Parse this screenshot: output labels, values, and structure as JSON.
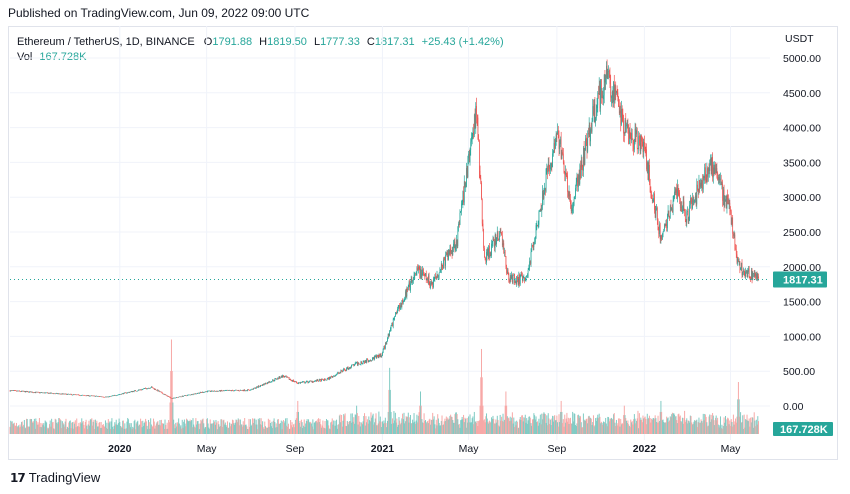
{
  "published": "Published on TradingView.com, Jun 09, 2022 09:00 UTC",
  "legend": {
    "symbol": "Ethereum / TetherUS, 1D, BINANCE",
    "open_label": "O",
    "open": "1791.88",
    "high_label": "H",
    "high": "1819.50",
    "low_label": "L",
    "low": "1777.33",
    "close_label": "C",
    "close": "1817.31",
    "change": "+25.43 (+1.42%)",
    "vol_label": "Vol",
    "vol": "167.728K"
  },
  "price_axis_unit": "USDT",
  "last_price_tag": "1817.31",
  "volume_tag": "167.728K",
  "footer_brand": "TradingView",
  "colors": {
    "up": "#26a69a",
    "down": "#ef5350",
    "up_vol": "#80cbc4",
    "down_vol": "#f7a9a7"
  },
  "chart_data": {
    "type": "candlestick",
    "y_axis_ticks": [
      "5000.00",
      "4500.00",
      "4000.00",
      "3500.00",
      "3000.00",
      "2500.00",
      "2000.00",
      "1500.00",
      "1000.00",
      "500.00",
      "0.00"
    ],
    "y_axis_values": [
      5000,
      4500,
      4000,
      3500,
      3000,
      2500,
      2000,
      1500,
      1000,
      500,
      0
    ],
    "ylim": [
      -300,
      5200
    ],
    "x_axis_ticks": [
      {
        "label": "2020",
        "date": "2020-01-01",
        "bold": true
      },
      {
        "label": "May",
        "date": "2020-05-01",
        "bold": false
      },
      {
        "label": "Sep",
        "date": "2020-09-01",
        "bold": false
      },
      {
        "label": "2021",
        "date": "2021-01-01",
        "bold": true
      },
      {
        "label": "May",
        "date": "2021-05-01",
        "bold": false
      },
      {
        "label": "Sep",
        "date": "2021-09-01",
        "bold": false
      },
      {
        "label": "2022",
        "date": "2022-01-01",
        "bold": true
      },
      {
        "label": "May",
        "date": "2022-05-01",
        "bold": false
      }
    ],
    "x_range": [
      "2019-08-01",
      "2022-06-25"
    ],
    "last_price": 1817.31,
    "price_path": [
      [
        "2019-08-01",
        220
      ],
      [
        "2019-09-15",
        190
      ],
      [
        "2019-11-01",
        160
      ],
      [
        "2019-12-15",
        130
      ],
      [
        "2020-02-14",
        270
      ],
      [
        "2020-03-13",
        110
      ],
      [
        "2020-05-01",
        210
      ],
      [
        "2020-07-01",
        230
      ],
      [
        "2020-08-15",
        430
      ],
      [
        "2020-09-05",
        330
      ],
      [
        "2020-10-15",
        380
      ],
      [
        "2020-11-24",
        600
      ],
      [
        "2020-12-31",
        730
      ],
      [
        "2021-01-20",
        1350
      ],
      [
        "2021-02-20",
        1950
      ],
      [
        "2021-03-10",
        1750
      ],
      [
        "2021-04-15",
        2400
      ],
      [
        "2021-05-12",
        4300
      ],
      [
        "2021-05-23",
        2100
      ],
      [
        "2021-06-15",
        2500
      ],
      [
        "2021-06-25",
        1850
      ],
      [
        "2021-07-20",
        1800
      ],
      [
        "2021-08-15",
        3200
      ],
      [
        "2021-09-03",
        3900
      ],
      [
        "2021-09-21",
        2800
      ],
      [
        "2021-10-20",
        4100
      ],
      [
        "2021-11-10",
        4800
      ],
      [
        "2021-12-04",
        4000
      ],
      [
        "2021-12-31",
        3700
      ],
      [
        "2022-01-24",
        2400
      ],
      [
        "2022-02-15",
        3100
      ],
      [
        "2022-03-01",
        2700
      ],
      [
        "2022-04-02",
        3500
      ],
      [
        "2022-04-30",
        2800
      ],
      [
        "2022-05-12",
        2000
      ],
      [
        "2022-06-09",
        1817
      ]
    ],
    "volume_spikes": [
      [
        "2020-03-13",
        1.0
      ],
      [
        "2021-01-11",
        0.7
      ],
      [
        "2021-05-19",
        0.9
      ],
      [
        "2021-02-23",
        0.45
      ],
      [
        "2021-06-22",
        0.45
      ],
      [
        "2021-09-07",
        0.35
      ],
      [
        "2022-01-24",
        0.35
      ],
      [
        "2022-05-12",
        0.55
      ],
      [
        "2020-09-05",
        0.35
      ],
      [
        "2020-11-26",
        0.3
      ],
      [
        "2021-12-04",
        0.3
      ]
    ]
  }
}
